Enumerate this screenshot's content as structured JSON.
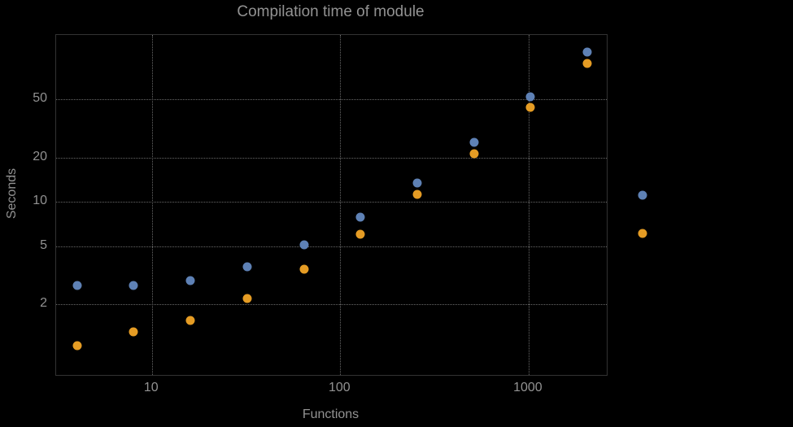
{
  "title": "Compilation time of module",
  "axis": {
    "x_label": "Functions",
    "y_label": "Seconds"
  },
  "colors": {
    "background": "#000000",
    "text": "#929292",
    "grid": "#686868",
    "frame": "#323232",
    "series1": "#5e81b5",
    "series2": "#e59c24"
  },
  "chart_data": {
    "type": "scatter",
    "title": "Compilation time of module",
    "xlabel": "Functions",
    "ylabel": "Seconds",
    "x_scale": "log",
    "y_scale": "log",
    "grid": true,
    "x": [
      4,
      8,
      16,
      32,
      64,
      128,
      256,
      512,
      1024,
      2048
    ],
    "series": [
      {
        "name": "series-1-blue",
        "color": "#5e81b5",
        "values": [
          2.7,
          2.7,
          2.9,
          3.6,
          5.1,
          7.9,
          13.5,
          25.5,
          52,
          105
        ]
      },
      {
        "name": "series-2-orange",
        "color": "#e59c24",
        "values": [
          1.05,
          1.3,
          1.55,
          2.2,
          3.5,
          6.0,
          11.3,
          21.5,
          44,
          88
        ]
      }
    ],
    "x_ticks": [
      10,
      100,
      1000
    ],
    "y_ticks": [
      2,
      5,
      10,
      20,
      50
    ],
    "x_range": [
      3.1,
      2600
    ],
    "y_range": [
      0.66,
      138
    ],
    "legend_position": "right-outside"
  },
  "legend": {
    "markers": [
      {
        "name": "legend-marker-series-1",
        "color": "#5e81b5"
      },
      {
        "name": "legend-marker-series-2",
        "color": "#e59c24"
      }
    ]
  }
}
